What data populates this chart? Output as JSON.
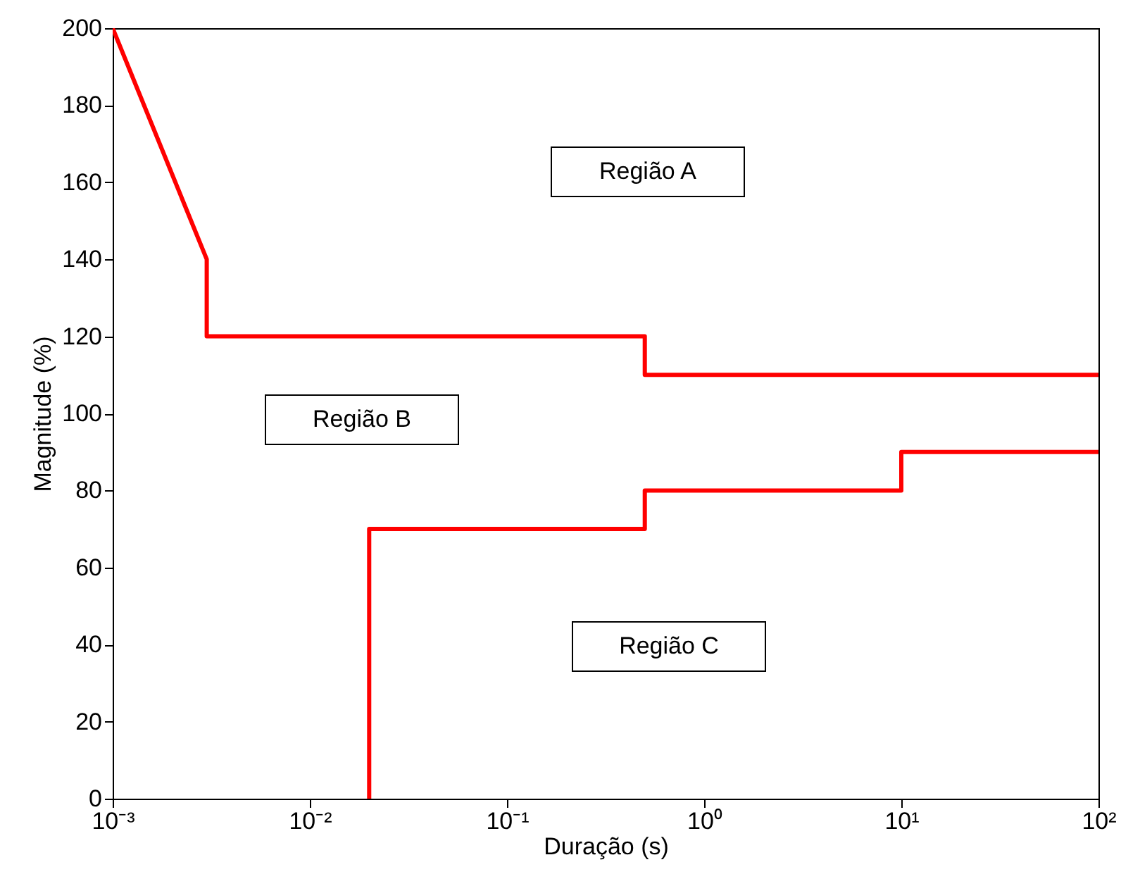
{
  "chart_data": {
    "type": "line",
    "xlabel": "Duração (s)",
    "ylabel": "Magnitude (%)",
    "log": "x",
    "xlim": [
      0.001,
      100
    ],
    "ylim": [
      0,
      200
    ],
    "xticks": [
      {
        "value": 0.001,
        "label": "10⁻³"
      },
      {
        "value": 0.01,
        "label": "10⁻²"
      },
      {
        "value": 0.1,
        "label": "10⁻¹"
      },
      {
        "value": 1,
        "label": "10⁰"
      },
      {
        "value": 10,
        "label": "10¹"
      },
      {
        "value": 100,
        "label": "10²"
      }
    ],
    "yticks": [
      0,
      20,
      40,
      60,
      80,
      100,
      120,
      140,
      160,
      180,
      200
    ],
    "grid": false,
    "series": [
      {
        "color": "#ff0000",
        "x": [
          0.001,
          0.003,
          0.003,
          0.5,
          0.5,
          100
        ],
        "values": [
          200,
          140,
          120,
          120,
          110,
          110
        ]
      },
      {
        "color": "#ff0000",
        "x": [
          0.02,
          0.02,
          0.5,
          0.5,
          10,
          10,
          100
        ],
        "values": [
          0,
          70,
          70,
          80,
          80,
          90,
          90
        ]
      }
    ],
    "annotations": [
      "Região A",
      "Região B",
      "Região C"
    ]
  }
}
